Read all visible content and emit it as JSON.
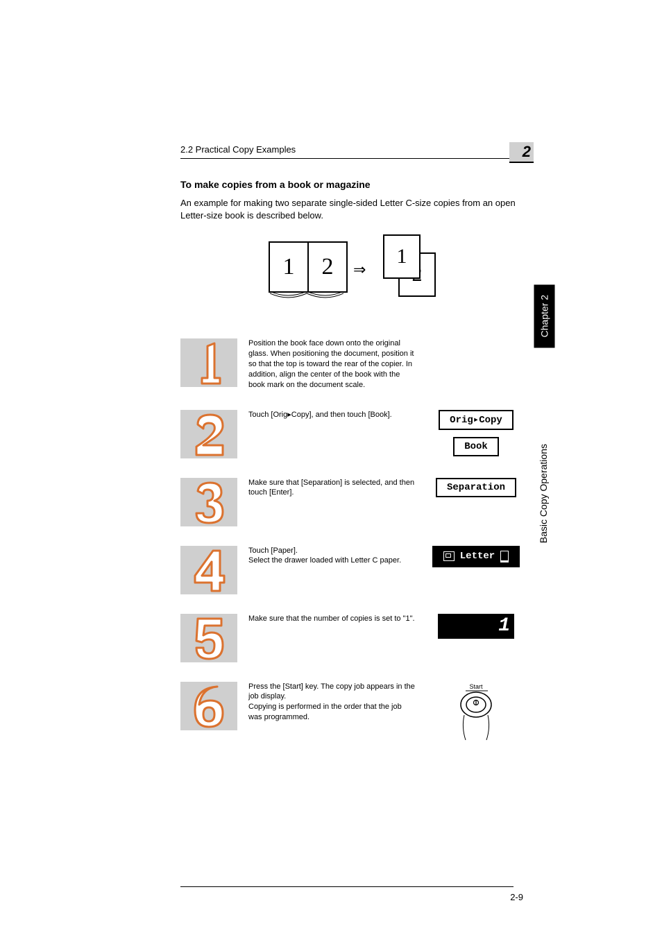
{
  "header": {
    "section_ref": "2.2 Practical Copy Examples",
    "chapter_num": "2",
    "side_chapter": "Chapter 2",
    "side_section": "Basic Copy Operations"
  },
  "title": "To make copies from a book or magazine",
  "intro": "An example for making two separate single-sided Letter C-size copies from an open Letter-size book is described below.",
  "diagram": {
    "left_page": "1",
    "right_page": "2",
    "arrow": "⇒",
    "sheet_front": "1",
    "sheet_back": "2"
  },
  "steps": [
    {
      "n": 1,
      "text": "Position the book face down onto the original glass. When positioning the document, position it so that the top is toward the rear of the copier. In addition, align the center of the book with the book mark on the document scale.",
      "ui": []
    },
    {
      "n": 2,
      "text": "Touch [Orig▸Copy], and then touch [Book].",
      "ui": [
        {
          "kind": "btn",
          "style": "dashed",
          "label": "Orig▸Copy"
        },
        {
          "kind": "btn",
          "style": "dashed",
          "label": "Book"
        }
      ]
    },
    {
      "n": 3,
      "text": "Make sure that [Separation] is selected, and then touch [Enter].",
      "ui": [
        {
          "kind": "btn",
          "style": "dashed",
          "label": "Separation"
        }
      ]
    },
    {
      "n": 4,
      "text_lines": [
        "Touch [Paper].",
        "Select the drawer loaded with Letter C paper."
      ],
      "ui": [
        {
          "kind": "btn",
          "style": "inverse",
          "label": "Letter",
          "tray_icon": true,
          "orient_icon": true
        }
      ]
    },
    {
      "n": 5,
      "text": "Make sure that the number of copies is set to \"1\".",
      "ui": [
        {
          "kind": "copies",
          "value": "1"
        }
      ]
    },
    {
      "n": 6,
      "text_lines": [
        "Press the [Start] key. The copy job appears in the job display.",
        "Copying is performed in the order that the job was programmed."
      ],
      "ui": [
        {
          "kind": "start",
          "label": "Start"
        }
      ]
    }
  ],
  "footer": {
    "page": "2-9"
  },
  "style": {
    "numeral_stroke": "#db722f",
    "numeral_fill": "#ffffff",
    "step_bg": "#cfcfcf",
    "chapter_tab_bg": "#d0d0d0"
  }
}
